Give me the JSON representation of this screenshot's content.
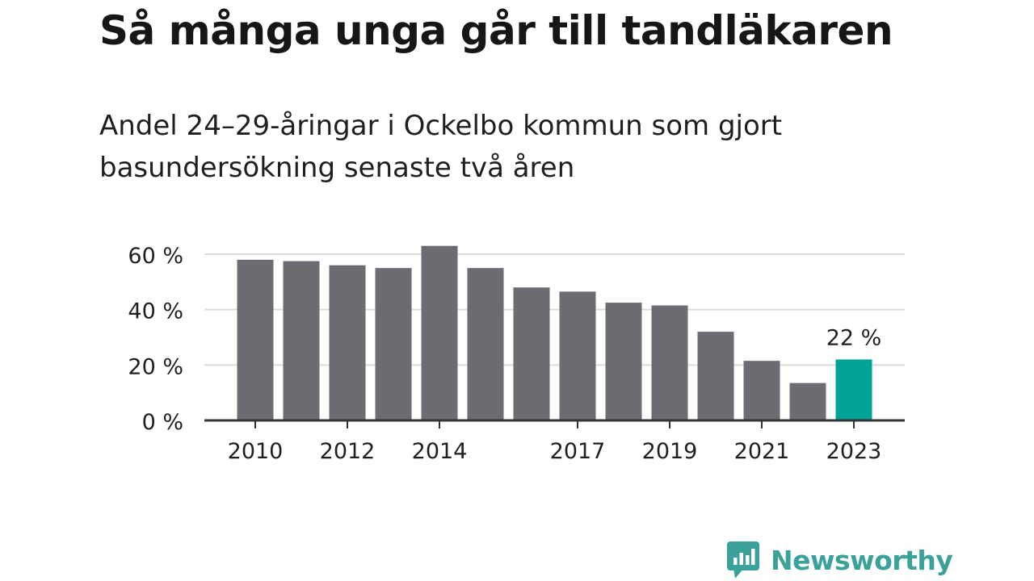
{
  "title": "Så många unga går till tandläkaren",
  "subtitle": "Andel 24–29-åringar i Ockelbo kommun som gjort basundersökning senaste två åren",
  "logo": {
    "text": "Newsworthy",
    "icon": "bar-chart-speech-bubble-icon"
  },
  "colors": {
    "bar": "#6d6c72",
    "highlight": "#00a396",
    "grid": "#dcdcdc",
    "axis": "#333333",
    "brand": "#3ba29a"
  },
  "chart_data": {
    "type": "bar",
    "categories": [
      "2010",
      "2011",
      "2012",
      "2013",
      "2014",
      "2015",
      "2016",
      "2017",
      "2018",
      "2019",
      "2020",
      "2021",
      "2022",
      "2023"
    ],
    "values": [
      58,
      57.5,
      56,
      55,
      63,
      55,
      48,
      46.5,
      42.5,
      41.5,
      32,
      21.5,
      13.5,
      22
    ],
    "highlight_index": 13,
    "data_labels": [
      {
        "index": 13,
        "text": "22 %"
      }
    ],
    "x_tick_labels": [
      "2010",
      "2012",
      "2014",
      "2017",
      "2019",
      "2021",
      "2023"
    ],
    "y_ticks": [
      0,
      20,
      40,
      60
    ],
    "y_tick_labels": [
      "0 %",
      "20 %",
      "40 %",
      "60 %"
    ],
    "ylim": [
      0,
      60
    ],
    "grid": true,
    "legend": "none"
  }
}
